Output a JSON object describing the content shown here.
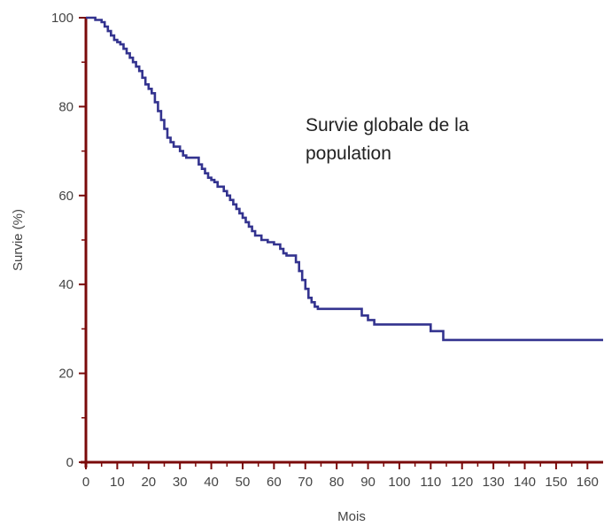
{
  "chart_data": {
    "type": "line",
    "title": "",
    "annotation": [
      "Survie globale de la",
      "population"
    ],
    "xlabel": "Mois",
    "ylabel": "Survie (%)",
    "xlim": [
      0,
      165
    ],
    "ylim": [
      0,
      100
    ],
    "x_ticks": [
      0,
      10,
      20,
      30,
      40,
      50,
      60,
      70,
      80,
      90,
      100,
      110,
      120,
      130,
      140,
      150,
      160
    ],
    "y_ticks": [
      0,
      20,
      40,
      60,
      80,
      100
    ],
    "grid": false,
    "legend": "none",
    "colors": {
      "line": "#33338f",
      "axis": "#7a0a0a",
      "text": "#444444"
    },
    "series": [
      {
        "step": true,
        "x": [
          0,
          3,
          5,
          6,
          7,
          8,
          9,
          10,
          11,
          12,
          13,
          14,
          15,
          16,
          17,
          18,
          19,
          20,
          21,
          22,
          23,
          24,
          25,
          26,
          27,
          28,
          30,
          31,
          32,
          33,
          36,
          37,
          38,
          39,
          40,
          41,
          42,
          44,
          45,
          46,
          47,
          48,
          49,
          50,
          51,
          52,
          53,
          54,
          56,
          58,
          60,
          62,
          63,
          64,
          67,
          68,
          69,
          70,
          71,
          72,
          73,
          74,
          76,
          78,
          80,
          82,
          85,
          88,
          90,
          92,
          95,
          100,
          105,
          108,
          110,
          113,
          114,
          120,
          130,
          140,
          150,
          160,
          165
        ],
        "y": [
          100,
          99.5,
          99,
          98,
          97,
          96,
          95,
          94.5,
          94,
          93,
          92,
          91,
          90,
          89,
          88,
          86.5,
          85,
          84,
          83,
          81,
          79,
          77,
          75,
          73,
          72,
          71,
          70,
          69,
          68.5,
          68.5,
          67,
          66,
          65,
          64,
          63.5,
          63,
          62,
          61,
          60,
          59,
          58,
          57,
          56,
          55,
          54,
          53,
          52,
          51,
          50,
          49.5,
          49,
          48,
          47,
          46.5,
          45,
          43,
          41,
          39,
          37,
          36,
          35,
          34.5,
          34.5,
          34.5,
          34.5,
          34.5,
          34.5,
          33,
          32,
          31,
          31,
          31,
          31,
          31,
          29.5,
          29.5,
          27.5,
          27.5,
          27.5,
          27.5,
          27.5,
          27.5,
          27.5
        ]
      }
    ]
  }
}
